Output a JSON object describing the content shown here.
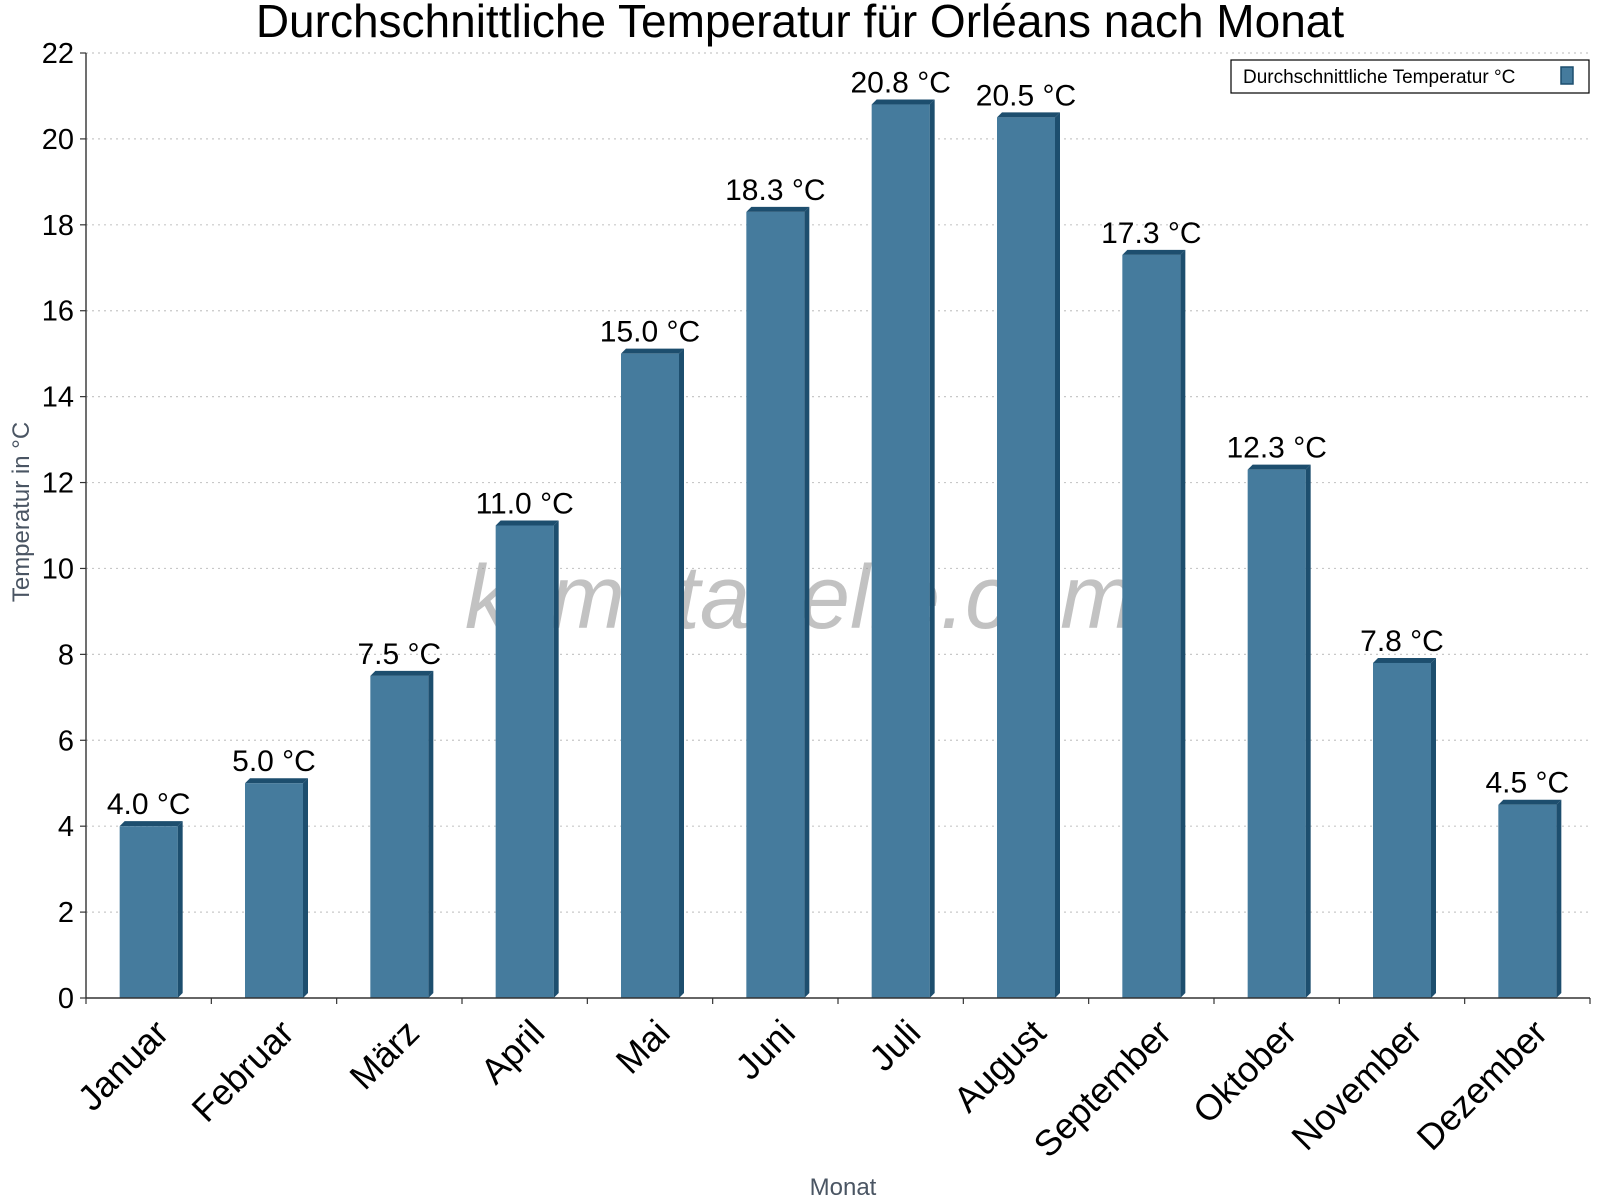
{
  "chart_data": {
    "type": "bar",
    "title": "Durchschnittliche Temperatur für Orléans nach Monat",
    "xlabel": "Monat",
    "ylabel": "Temperatur in °C",
    "ylim": [
      0,
      22
    ],
    "yticks": [
      "0",
      "2",
      "4",
      "6",
      "8",
      "10",
      "12",
      "14",
      "16",
      "18",
      "20",
      "22"
    ],
    "grid": true,
    "legend_position": "top-right",
    "categories": [
      "Januar",
      "Februar",
      "März",
      "April",
      "Mai",
      "Juni",
      "Juli",
      "August",
      "September",
      "Oktober",
      "November",
      "Dezember"
    ],
    "series": [
      {
        "name": "Durchschnittliche Temperatur °C",
        "values": [
          4.0,
          5.0,
          7.5,
          11.0,
          15.0,
          18.3,
          20.8,
          20.5,
          17.3,
          12.3,
          7.8,
          4.5
        ],
        "labels": [
          "4.0 °C",
          "5.0 °C",
          "7.5 °C",
          "11.0 °C",
          "15.0 °C",
          "18.3 °C",
          "20.8 °C",
          "20.5 °C",
          "17.3 °C",
          "12.3 °C",
          "7.8 °C",
          "4.5 °C"
        ],
        "color": "#457b9d",
        "edge_color": "#1d4e6e"
      }
    ]
  },
  "watermark": "klimatabelle.com"
}
